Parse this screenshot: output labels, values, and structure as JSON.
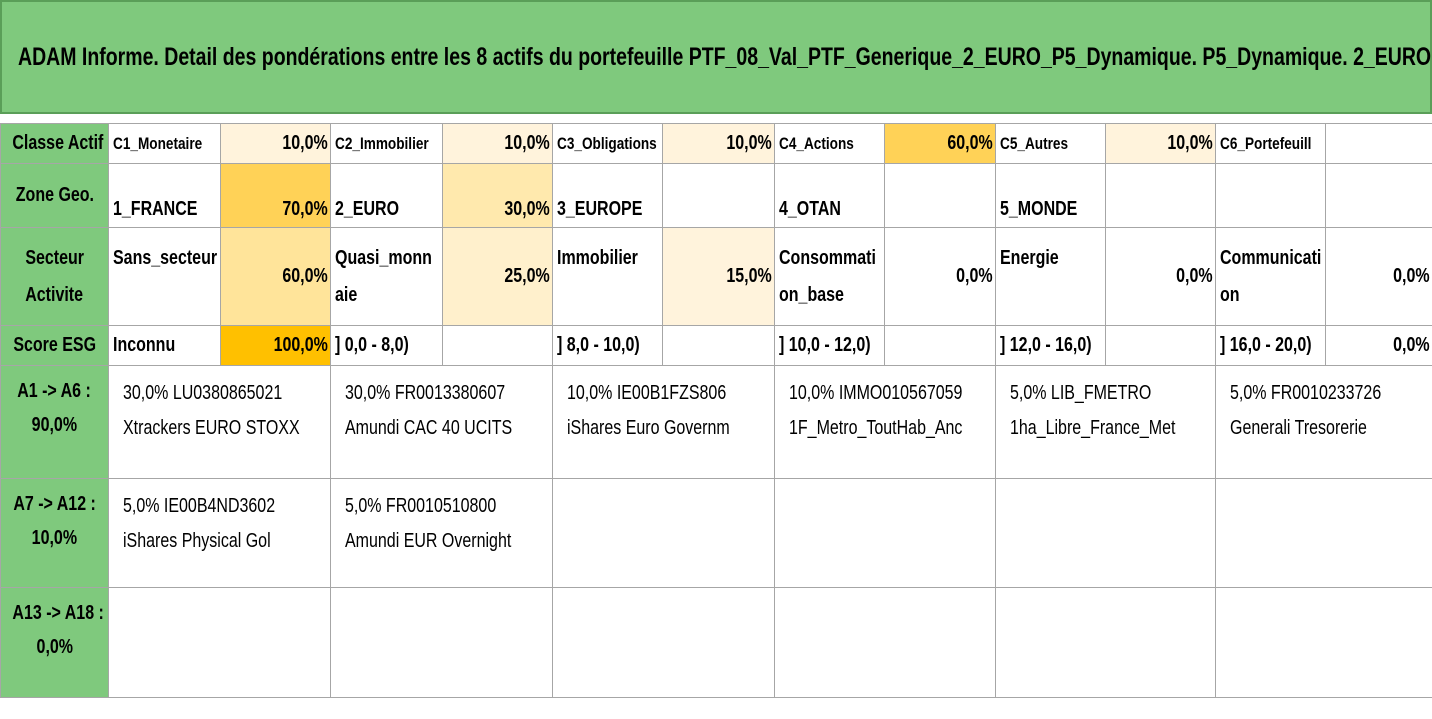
{
  "title": "ADAM Informe. Detail des pondérations entre les 8 actifs du portefeuille PTF_08_Val_PTF_Generique_2_EURO_P5_Dynamique. P5_Dynamique. 2_EURO.",
  "colors": {
    "header_green": "#7fc97d",
    "weight_light": "#fff3dc",
    "weight_mid": "#ffe9ad",
    "weight_strong": "#ffd257",
    "weight_max": "#ffc000"
  },
  "classe_actif": {
    "label": "Classe Actif",
    "items": [
      {
        "name": "C1_Monetaire",
        "value": "10,0%"
      },
      {
        "name": "C2_Immobilier",
        "value": "10,0%"
      },
      {
        "name": "C3_Obligations",
        "value": "10,0%"
      },
      {
        "name": "C4_Actions",
        "value": "60,0%"
      },
      {
        "name": "C5_Autres",
        "value": "10,0%"
      },
      {
        "name": "C6_Portefeuill",
        "value": ""
      }
    ]
  },
  "zone_geo": {
    "label": "Zone Geo.",
    "items": [
      {
        "name": "1_FRANCE",
        "value": "70,0%"
      },
      {
        "name": "2_EURO",
        "value": "30,0%"
      },
      {
        "name": "3_EUROPE",
        "value": ""
      },
      {
        "name": "4_OTAN",
        "value": ""
      },
      {
        "name": "5_MONDE",
        "value": ""
      },
      {
        "name": "",
        "value": ""
      }
    ]
  },
  "secteur": {
    "label_line1": "Secteur",
    "label_line2": "Activite",
    "items": [
      {
        "name1": "Sans_secteur",
        "name2": "",
        "value": "60,0%"
      },
      {
        "name1": "Quasi_monn",
        "name2": "aie",
        "value": "25,0%"
      },
      {
        "name1": "Immobilier",
        "name2": "",
        "value": "15,0%"
      },
      {
        "name1": "Consommati",
        "name2": "on_base",
        "value": "0,0%"
      },
      {
        "name1": "Energie",
        "name2": "",
        "value": "0,0%"
      },
      {
        "name1": "Communicati",
        "name2": "on",
        "value": "0,0%"
      }
    ]
  },
  "score_esg": {
    "label": "Score ESG",
    "items": [
      {
        "name": "Inconnu",
        "value": "100,0%"
      },
      {
        "name": "] 0,0 - 8,0)",
        "value": ""
      },
      {
        "name": "] 8,0 - 10,0)",
        "value": ""
      },
      {
        "name": "] 10,0 - 12,0)",
        "value": ""
      },
      {
        "name": "] 12,0 - 16,0)",
        "value": ""
      },
      {
        "name": "] 16,0 - 20,0)",
        "value": "0,0%"
      }
    ]
  },
  "asset_rows": [
    {
      "range": "A1 -> A6 :",
      "total": "90,0%",
      "assets": [
        {
          "line1": "30,0% LU0380865021",
          "line2": "Xtrackers EURO STOXX"
        },
        {
          "line1": "30,0% FR0013380607",
          "line2": "Amundi CAC 40 UCITS"
        },
        {
          "line1": "10,0% IE00B1FZS806",
          "line2": "iShares Euro Governm"
        },
        {
          "line1": "10,0% IMMO010567059",
          "line2": "1F_Metro_ToutHab_Anc"
        },
        {
          "line1": "5,0% LIB_FMETRO",
          "line2": "1ha_Libre_France_Met"
        },
        {
          "line1": "5,0% FR0010233726",
          "line2": "Generali Tresorerie"
        }
      ]
    },
    {
      "range": "A7 -> A12 :",
      "total": "10,0%",
      "assets": [
        {
          "line1": "5,0% IE00B4ND3602",
          "line2": "iShares Physical Gol"
        },
        {
          "line1": "5,0% FR0010510800",
          "line2": "Amundi EUR Overnight"
        },
        {
          "line1": "",
          "line2": ""
        },
        {
          "line1": "",
          "line2": ""
        },
        {
          "line1": "",
          "line2": ""
        },
        {
          "line1": "",
          "line2": ""
        }
      ]
    },
    {
      "range": "A13 -> A18 :",
      "total": "0,0%",
      "assets": [
        {
          "line1": "",
          "line2": ""
        },
        {
          "line1": "",
          "line2": ""
        },
        {
          "line1": "",
          "line2": ""
        },
        {
          "line1": "",
          "line2": ""
        },
        {
          "line1": "",
          "line2": ""
        },
        {
          "line1": "",
          "line2": ""
        }
      ]
    }
  ]
}
